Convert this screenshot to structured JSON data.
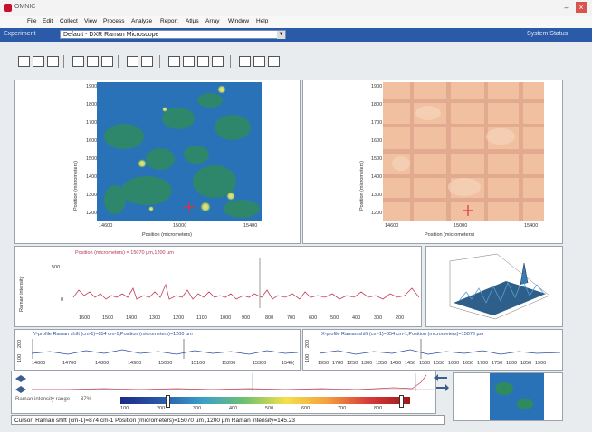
{
  "window": {
    "title": "OMNIC",
    "minimize": "–",
    "close": "×"
  },
  "menu": [
    "File",
    "Edit",
    "Collect",
    "View",
    "Process",
    "Analyze",
    "Report",
    "Atlµs",
    "Array",
    "Window",
    "Help"
  ],
  "experiment": {
    "label": "Experiment",
    "value": "Default - DXR Raman Microscope",
    "status": "System Status"
  },
  "toolbar_icons": [
    "open-icon",
    "save-icon",
    "print-icon",
    "cut-icon",
    "zoom-icon",
    "export-icon",
    "grid-icon",
    "grid-2-icon",
    "map-icon",
    "image-icon",
    "search-icon",
    "camera-icon",
    "grid-3-icon",
    "spectrum-icon",
    "view-icon"
  ],
  "map1": {
    "xlabel": "Position (micrometers)",
    "ylabel": "Position (micrometers)",
    "xticks": [
      "14600",
      "15000",
      "15400"
    ],
    "yticks": [
      "1900",
      "1800",
      "1700",
      "1600",
      "1500",
      "1400",
      "1300",
      "1200"
    ]
  },
  "map2": {
    "xlabel": "Position (micrometers)",
    "ylabel": "Position (micrometers)",
    "xticks": [
      "14600",
      "15000",
      "15400"
    ],
    "yticks": [
      "1900",
      "1800",
      "1700",
      "1600",
      "1500",
      "1400",
      "1300",
      "1200"
    ]
  },
  "spectrum": {
    "ylabel": "Raman intensity",
    "legend": "Position (micrometers) = 15070 µm,1200 µm",
    "yticks": [
      "500",
      "0"
    ],
    "xticks": [
      "1600",
      "1500",
      "1400",
      "1300",
      "1200",
      "1100",
      "1000",
      "900",
      "800",
      "700",
      "600",
      "500",
      "400",
      "300",
      "200"
    ]
  },
  "profile1": {
    "yticks": [
      "200",
      "100"
    ],
    "legend": "Y-profile Raman shift (cm-1)=854 cm-1,Position (micrometers)=1200 µm",
    "xticks": [
      "14600",
      "14700",
      "14800",
      "14900",
      "15000",
      "15100",
      "15200",
      "15300",
      "1540("
    ]
  },
  "profile2": {
    "yticks": [
      "200",
      "100"
    ],
    "legend": "X-profile Raman shift (cm-1)=854 cm-1,Position (micrometers)=15070 µm",
    "xticks": [
      "1950",
      "1780",
      "1250",
      "1300",
      "1350",
      "1400",
      "1450",
      "1500",
      "1550",
      "1600",
      "1650",
      "1700",
      "1750",
      "1800",
      "1850",
      "1900"
    ]
  },
  "colorbar": {
    "label": "Raman intensity range",
    "pct": "87%",
    "ticks": [
      "100",
      "200",
      "300",
      "400",
      "500",
      "600",
      "700",
      "800"
    ],
    "accent": "#2b5aa8"
  },
  "status": "Cursor: Raman shift (cm-1)=874 cm-1  Position (micrometers)=15070 µm ,1200 µm  Raman intensity=145.23"
}
